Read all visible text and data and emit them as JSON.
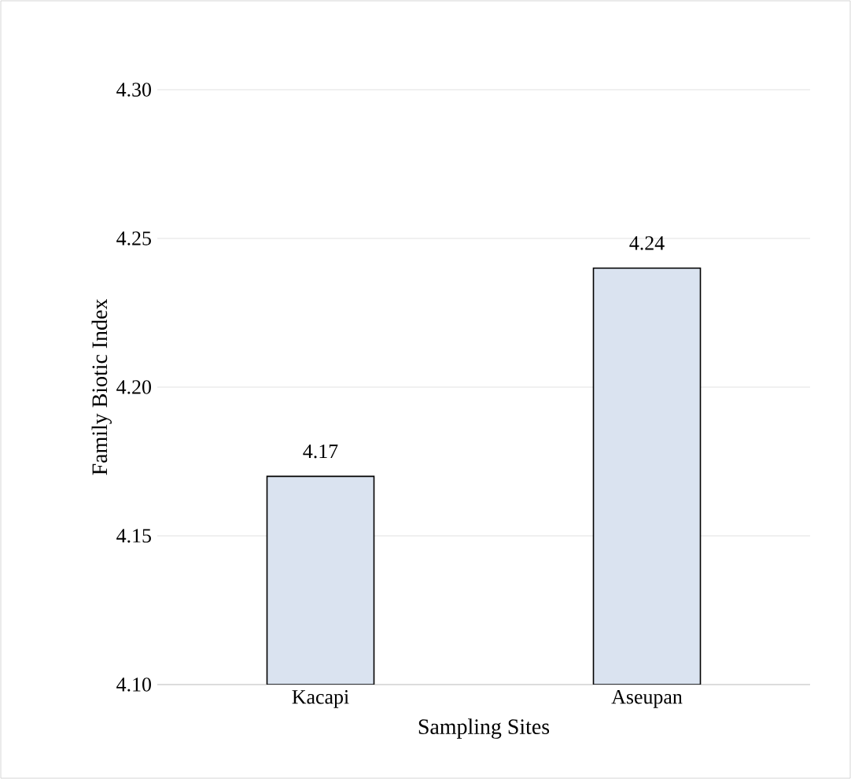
{
  "chart_data": {
    "type": "bar",
    "xlabel": "Sampling Sites",
    "ylabel": "Family Biotic Index",
    "categories": [
      "Kacapi",
      "Aseupan"
    ],
    "values": [
      4.17,
      4.24
    ],
    "color": "#dae3f0",
    "ylim": [
      4.1,
      4.3
    ],
    "yticks": [
      {
        "value": 4.1,
        "label": "4.10"
      },
      {
        "value": 4.15,
        "label": "4.15"
      },
      {
        "value": 4.2,
        "label": "4.20"
      },
      {
        "value": 4.25,
        "label": "4.25"
      },
      {
        "value": 4.3,
        "label": "4.30"
      }
    ],
    "grid": "y",
    "data_labels": true
  }
}
